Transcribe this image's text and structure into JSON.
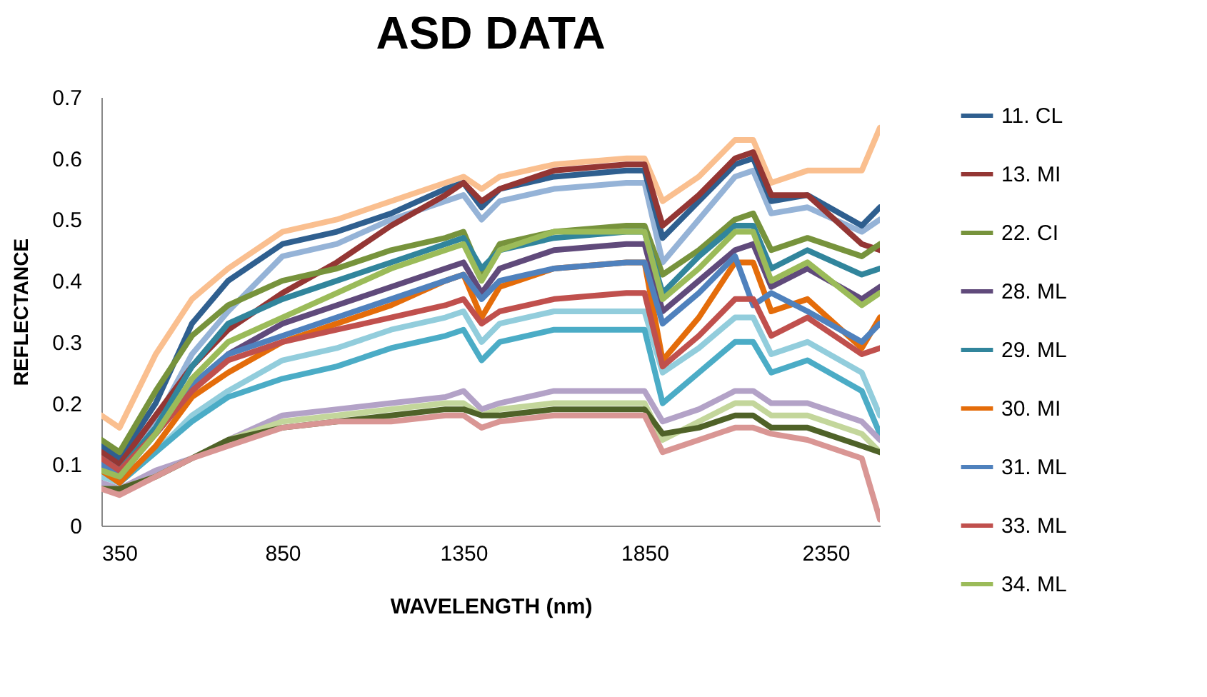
{
  "chart_data": {
    "type": "line",
    "title": "ASD DATA",
    "xlabel": "WAVELENGTH (nm)",
    "ylabel": "REFLECTANCE",
    "x": [
      350,
      400,
      500,
      600,
      700,
      850,
      1000,
      1150,
      1300,
      1350,
      1400,
      1450,
      1600,
      1800,
      1850,
      1900,
      2000,
      2100,
      2150,
      2200,
      2300,
      2450,
      2500
    ],
    "xlim": [
      350,
      2500
    ],
    "xticks": [
      350,
      850,
      1350,
      1850,
      2350
    ],
    "ylim": [
      0,
      0.7
    ],
    "yticks": [
      0,
      0.1,
      0.2,
      0.3,
      0.4,
      0.5,
      0.6,
      0.7
    ],
    "grid": false,
    "legend": "right",
    "line_style": "solid",
    "marker": "none",
    "series": [
      {
        "color": "#fabf8f",
        "values": [
          0.18,
          0.16,
          0.28,
          0.37,
          0.42,
          0.48,
          0.5,
          0.53,
          0.56,
          0.57,
          0.55,
          0.57,
          0.59,
          0.6,
          0.6,
          0.53,
          0.57,
          0.63,
          0.63,
          0.56,
          0.58,
          0.58,
          0.65
        ]
      },
      {
        "color": "#95b3d7",
        "values": [
          0.1,
          0.08,
          0.17,
          0.28,
          0.35,
          0.44,
          0.46,
          0.5,
          0.53,
          0.54,
          0.5,
          0.53,
          0.55,
          0.56,
          0.56,
          0.43,
          0.5,
          0.57,
          0.58,
          0.51,
          0.52,
          0.48,
          0.5
        ]
      },
      {
        "color": "#92cddc",
        "values": [
          0.08,
          0.07,
          0.12,
          0.18,
          0.22,
          0.27,
          0.29,
          0.32,
          0.34,
          0.35,
          0.3,
          0.33,
          0.35,
          0.35,
          0.35,
          0.25,
          0.29,
          0.34,
          0.34,
          0.28,
          0.3,
          0.25,
          0.18
        ]
      },
      {
        "color": "#4bacc6",
        "values": [
          0.09,
          0.07,
          0.12,
          0.17,
          0.21,
          0.24,
          0.26,
          0.29,
          0.31,
          0.32,
          0.27,
          0.3,
          0.32,
          0.32,
          0.32,
          0.2,
          0.25,
          0.3,
          0.3,
          0.25,
          0.27,
          0.22,
          0.15
        ]
      },
      {
        "color": "#b3a2c7",
        "values": [
          0.07,
          0.06,
          0.09,
          0.11,
          0.14,
          0.18,
          0.19,
          0.2,
          0.21,
          0.22,
          0.19,
          0.2,
          0.22,
          0.22,
          0.22,
          0.17,
          0.19,
          0.22,
          0.22,
          0.2,
          0.2,
          0.17,
          0.14
        ]
      },
      {
        "color": "#c3d69b",
        "values": [
          0.06,
          0.06,
          0.08,
          0.11,
          0.14,
          0.17,
          0.18,
          0.19,
          0.2,
          0.2,
          0.18,
          0.19,
          0.2,
          0.2,
          0.2,
          0.14,
          0.17,
          0.2,
          0.2,
          0.18,
          0.18,
          0.15,
          0.12
        ]
      },
      {
        "color": "#4f6228",
        "values": [
          0.06,
          0.06,
          0.08,
          0.11,
          0.14,
          0.16,
          0.17,
          0.18,
          0.19,
          0.19,
          0.18,
          0.18,
          0.19,
          0.19,
          0.19,
          0.15,
          0.16,
          0.18,
          0.18,
          0.16,
          0.16,
          0.13,
          0.12
        ]
      },
      {
        "color": "#d99694",
        "values": [
          0.06,
          0.05,
          0.08,
          0.11,
          0.13,
          0.16,
          0.17,
          0.17,
          0.18,
          0.18,
          0.16,
          0.17,
          0.18,
          0.18,
          0.18,
          0.12,
          0.14,
          0.16,
          0.16,
          0.15,
          0.14,
          0.11,
          0.01
        ]
      },
      {
        "name": "11. CL",
        "color": "#2f5f8f",
        "values": [
          0.13,
          0.11,
          0.2,
          0.33,
          0.4,
          0.46,
          0.48,
          0.51,
          0.55,
          0.56,
          0.52,
          0.55,
          0.57,
          0.58,
          0.58,
          0.47,
          0.53,
          0.59,
          0.6,
          0.53,
          0.54,
          0.49,
          0.52
        ]
      },
      {
        "name": "13. MI",
        "color": "#943634",
        "values": [
          0.12,
          0.1,
          0.18,
          0.26,
          0.32,
          0.38,
          0.43,
          0.49,
          0.54,
          0.56,
          0.53,
          0.55,
          0.58,
          0.59,
          0.59,
          0.49,
          0.54,
          0.6,
          0.61,
          0.54,
          0.54,
          0.46,
          0.45
        ]
      },
      {
        "name": "22. CI",
        "color": "#77933c",
        "values": [
          0.14,
          0.12,
          0.22,
          0.31,
          0.36,
          0.4,
          0.42,
          0.45,
          0.47,
          0.48,
          0.41,
          0.46,
          0.48,
          0.49,
          0.49,
          0.41,
          0.45,
          0.5,
          0.51,
          0.45,
          0.47,
          0.44,
          0.46
        ]
      },
      {
        "name": "28. ML",
        "color": "#604a7b",
        "values": [
          0.11,
          0.09,
          0.15,
          0.22,
          0.28,
          0.33,
          0.36,
          0.39,
          0.42,
          0.43,
          0.38,
          0.42,
          0.45,
          0.46,
          0.46,
          0.35,
          0.4,
          0.45,
          0.46,
          0.39,
          0.42,
          0.37,
          0.39
        ]
      },
      {
        "name": "29. ML",
        "color": "#31859c",
        "values": [
          0.11,
          0.09,
          0.16,
          0.26,
          0.33,
          0.37,
          0.4,
          0.43,
          0.46,
          0.47,
          0.42,
          0.45,
          0.47,
          0.48,
          0.48,
          0.38,
          0.44,
          0.49,
          0.49,
          0.42,
          0.45,
          0.41,
          0.42
        ]
      },
      {
        "name": "30. MI",
        "color": "#e46c0a",
        "values": [
          0.09,
          0.07,
          0.13,
          0.21,
          0.25,
          0.3,
          0.33,
          0.36,
          0.4,
          0.41,
          0.34,
          0.39,
          0.42,
          0.43,
          0.43,
          0.27,
          0.34,
          0.43,
          0.43,
          0.35,
          0.37,
          0.29,
          0.34
        ]
      },
      {
        "name": "31. ML",
        "color": "#4f81bd",
        "values": [
          0.1,
          0.08,
          0.15,
          0.23,
          0.28,
          0.31,
          0.34,
          0.37,
          0.4,
          0.41,
          0.37,
          0.4,
          0.42,
          0.43,
          0.43,
          0.33,
          0.38,
          0.44,
          0.36,
          0.38,
          0.35,
          0.3,
          0.33
        ]
      },
      {
        "name": "33. ML",
        "color": "#c0504d",
        "values": [
          0.11,
          0.09,
          0.15,
          0.22,
          0.27,
          0.3,
          0.32,
          0.34,
          0.36,
          0.37,
          0.33,
          0.35,
          0.37,
          0.38,
          0.38,
          0.26,
          0.31,
          0.37,
          0.37,
          0.31,
          0.34,
          0.28,
          0.29
        ]
      },
      {
        "name": "34. ML",
        "color": "#9bbb59",
        "values": [
          0.09,
          0.08,
          0.15,
          0.24,
          0.3,
          0.34,
          0.38,
          0.42,
          0.45,
          0.46,
          0.4,
          0.45,
          0.48,
          0.48,
          0.48,
          0.37,
          0.42,
          0.48,
          0.48,
          0.4,
          0.43,
          0.36,
          0.38
        ]
      }
    ]
  }
}
